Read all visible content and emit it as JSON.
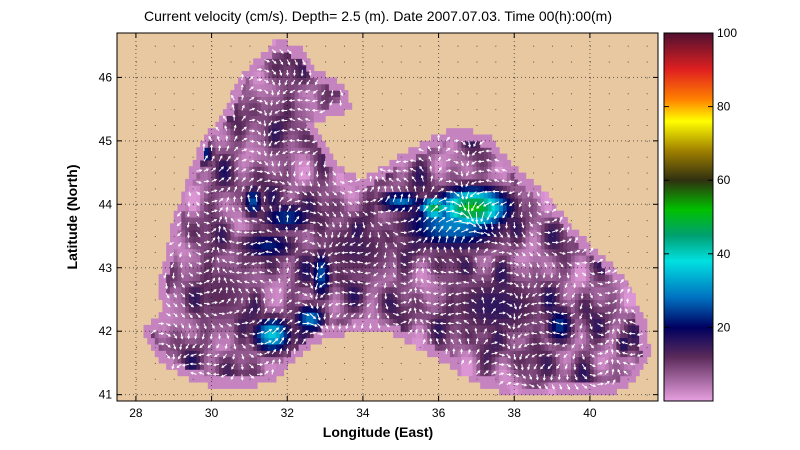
{
  "chart_data": {
    "type": "heatmap",
    "title": "Current velocity (cm/s). Depth=  2.5 (m). Date 2007.07.03. Time 00(h):00(m)",
    "xlabel": "Longitude (East)",
    "ylabel": "Latitude (North)",
    "xlim": [
      27.5,
      41.8
    ],
    "ylim": [
      40.9,
      46.7
    ],
    "xticks": [
      28,
      30,
      32,
      34,
      36,
      38,
      40
    ],
    "yticks": [
      41,
      42,
      43,
      44,
      45,
      46
    ],
    "grid": true,
    "colorbar": {
      "range": [
        0,
        100
      ],
      "ticks": [
        20,
        40,
        60,
        80,
        100
      ],
      "stops": [
        {
          "v": 0,
          "color": "#e8a0e0"
        },
        {
          "v": 12,
          "color": "#5a2a5a"
        },
        {
          "v": 20,
          "color": "#000060"
        },
        {
          "v": 28,
          "color": "#0070c0"
        },
        {
          "v": 38,
          "color": "#00e0e0"
        },
        {
          "v": 45,
          "color": "#00a070"
        },
        {
          "v": 52,
          "color": "#00c000"
        },
        {
          "v": 60,
          "color": "#303010"
        },
        {
          "v": 68,
          "color": "#a08000"
        },
        {
          "v": 76,
          "color": "#ffff00"
        },
        {
          "v": 82,
          "color": "#ff8000"
        },
        {
          "v": 90,
          "color": "#e02020"
        },
        {
          "v": 100,
          "color": "#501030"
        }
      ]
    },
    "land_color": "#e8c8a0",
    "sea_outline": [
      [
        28.7,
        42.3
      ],
      [
        28.6,
        42.8
      ],
      [
        28.8,
        43.2
      ],
      [
        29.0,
        43.8
      ],
      [
        29.3,
        44.3
      ],
      [
        29.7,
        45.0
      ],
      [
        30.3,
        45.4
      ],
      [
        30.7,
        46.0
      ],
      [
        31.2,
        46.3
      ],
      [
        31.7,
        46.6
      ],
      [
        32.3,
        46.5
      ],
      [
        32.8,
        46.1
      ],
      [
        33.5,
        45.9
      ],
      [
        33.7,
        45.5
      ],
      [
        32.7,
        45.3
      ],
      [
        33.3,
        44.6
      ],
      [
        34.0,
        44.4
      ],
      [
        35.3,
        44.9
      ],
      [
        35.9,
        45.1
      ],
      [
        36.5,
        45.2
      ],
      [
        37.3,
        45.1
      ],
      [
        38.0,
        44.6
      ],
      [
        38.8,
        44.2
      ],
      [
        39.6,
        43.6
      ],
      [
        40.3,
        43.2
      ],
      [
        41.0,
        42.8
      ],
      [
        41.5,
        42.1
      ],
      [
        41.6,
        41.6
      ],
      [
        41.2,
        41.2
      ],
      [
        40.6,
        41.0
      ],
      [
        40.0,
        41.0
      ],
      [
        39.3,
        41.0
      ],
      [
        38.5,
        40.95
      ],
      [
        37.8,
        41.0
      ],
      [
        36.9,
        41.2
      ],
      [
        36.2,
        41.5
      ],
      [
        35.5,
        41.7
      ],
      [
        34.8,
        41.95
      ],
      [
        33.9,
        42.0
      ],
      [
        33.0,
        41.9
      ],
      [
        32.3,
        41.6
      ],
      [
        31.6,
        41.2
      ],
      [
        30.8,
        41.1
      ],
      [
        29.9,
        41.15
      ],
      [
        29.2,
        41.3
      ],
      [
        28.7,
        41.5
      ],
      [
        28.1,
        42.0
      ]
    ],
    "speed_features": [
      {
        "x": 36.9,
        "y": 43.95,
        "sx": 1.0,
        "sy": 0.33,
        "v": 52
      },
      {
        "x": 35.9,
        "y": 43.95,
        "sx": 0.45,
        "sy": 0.18,
        "v": 48
      },
      {
        "x": 36.4,
        "y": 43.7,
        "sx": 1.5,
        "sy": 0.45,
        "v": 30
      },
      {
        "x": 35.0,
        "y": 44.05,
        "sx": 0.7,
        "sy": 0.18,
        "v": 28
      },
      {
        "x": 31.6,
        "y": 41.95,
        "sx": 0.55,
        "sy": 0.3,
        "v": 36
      },
      {
        "x": 32.6,
        "y": 42.2,
        "sx": 0.45,
        "sy": 0.25,
        "v": 30
      },
      {
        "x": 32.9,
        "y": 42.9,
        "sx": 0.3,
        "sy": 0.45,
        "v": 26
      },
      {
        "x": 32.0,
        "y": 43.8,
        "sx": 0.8,
        "sy": 0.25,
        "v": 24
      },
      {
        "x": 31.5,
        "y": 43.35,
        "sx": 0.9,
        "sy": 0.25,
        "v": 22
      },
      {
        "x": 31.1,
        "y": 44.05,
        "sx": 0.28,
        "sy": 0.28,
        "v": 26
      },
      {
        "x": 29.8,
        "y": 44.8,
        "sx": 0.3,
        "sy": 0.2,
        "v": 24
      },
      {
        "x": 39.2,
        "y": 42.1,
        "sx": 0.4,
        "sy": 0.35,
        "v": 24
      },
      {
        "x": 37.5,
        "y": 42.4,
        "sx": 1.6,
        "sy": 0.6,
        "v": 16
      },
      {
        "x": 33.8,
        "y": 43.3,
        "sx": 1.3,
        "sy": 0.6,
        "v": 14
      },
      {
        "x": 30.2,
        "y": 42.6,
        "sx": 1.2,
        "sy": 0.7,
        "v": 12
      },
      {
        "x": 40.9,
        "y": 41.8,
        "sx": 0.25,
        "sy": 0.22,
        "v": 18
      },
      {
        "x": 31.8,
        "y": 45.3,
        "sx": 1.0,
        "sy": 0.6,
        "v": 10
      }
    ]
  }
}
